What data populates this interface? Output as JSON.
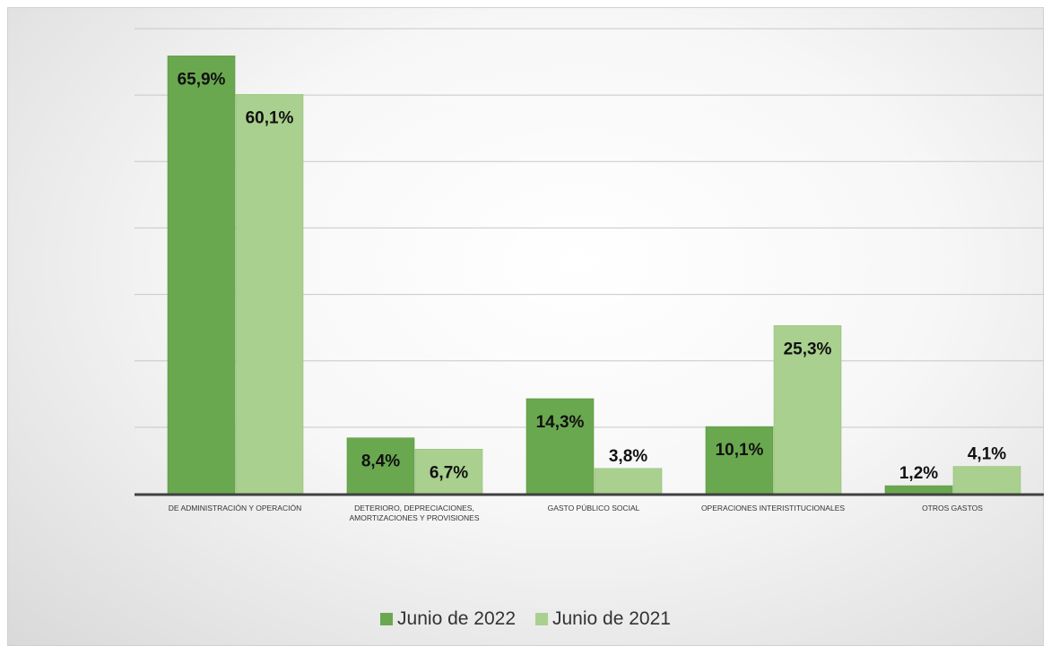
{
  "chart_data": {
    "type": "bar",
    "categories": [
      "DE ADMINISTRACIÓN Y OPERACIÓN",
      "DETERIORO, DEPRECIACIONES, AMORTIZACIONES Y PROVISIONES",
      "GASTO PÚBLICO SOCIAL",
      "OPERACIONES INTERISTITUCIONALES",
      "OTROS GASTOS"
    ],
    "series": [
      {
        "name": "Junio de 2022",
        "values": [
          65.9,
          8.4,
          14.3,
          10.1,
          1.2
        ],
        "labels": [
          "65,9%",
          "8,4%",
          "14,3%",
          "10,1%",
          "1,2%"
        ],
        "color": "#6aa84f"
      },
      {
        "name": "Junio de 2021",
        "values": [
          60.1,
          6.7,
          3.8,
          25.3,
          4.1
        ],
        "labels": [
          "60,1%",
          "6,7%",
          "3,8%",
          "25,3%",
          "4,1%"
        ],
        "color": "#a9d08e"
      }
    ],
    "ylim": [
      0,
      70
    ],
    "grid": true,
    "legend": "bottom",
    "title": "",
    "xlabel": "",
    "ylabel": ""
  }
}
